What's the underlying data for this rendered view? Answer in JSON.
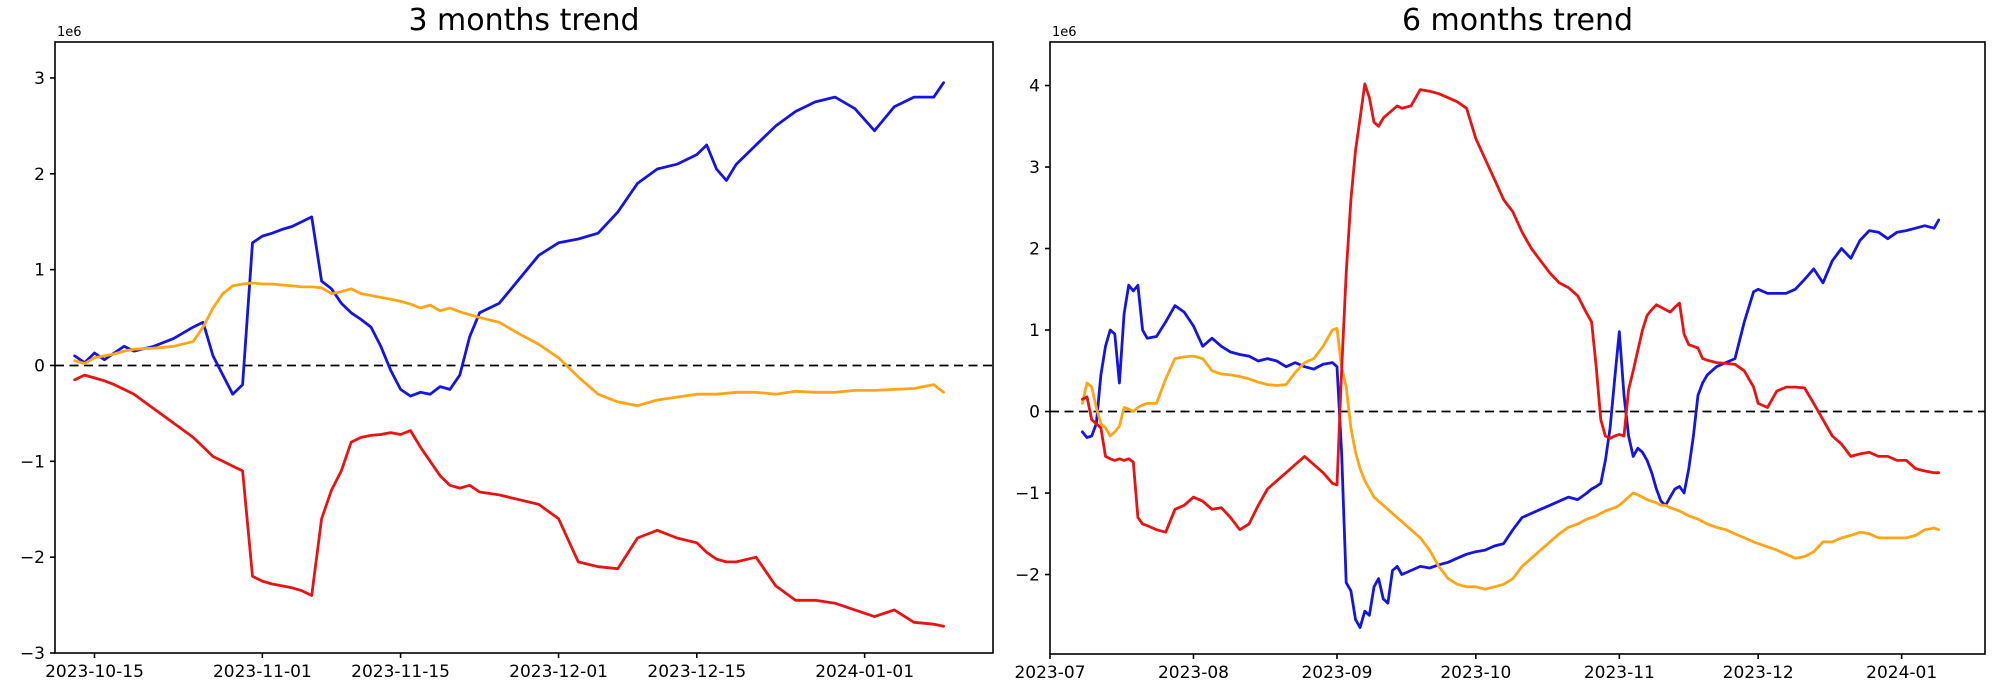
{
  "figure": {
    "background_color": "#ffffff",
    "axis_color": "#000000",
    "zero_line_style": "dashed-black",
    "series_colors": {
      "blue": "#1515e0",
      "orange": "#ffa517",
      "red": "#e81414"
    }
  },
  "chart_data": [
    {
      "type": "line",
      "title": "3 months trend",
      "y_offset_label": "1e6",
      "y_unit_multiplier": 1000000,
      "grid": false,
      "legend": null,
      "zero_line": true,
      "x_domain": [
        "2023-10-11",
        "2024-01-14"
      ],
      "y_domain": [
        -3.0,
        3.375
      ],
      "x_ticks": [
        {
          "date": "2023-10-15",
          "label": "2023-10-15"
        },
        {
          "date": "2023-11-01",
          "label": "2023-11-01"
        },
        {
          "date": "2023-11-15",
          "label": "2023-11-15"
        },
        {
          "date": "2023-12-01",
          "label": "2023-12-01"
        },
        {
          "date": "2023-12-15",
          "label": "2023-12-15"
        },
        {
          "date": "2024-01-01",
          "label": "2024-01-01"
        }
      ],
      "y_ticks": [
        {
          "value": 3,
          "label": "3"
        },
        {
          "value": 2,
          "label": "2"
        },
        {
          "value": 1,
          "label": "1"
        },
        {
          "value": 0,
          "label": "0"
        },
        {
          "value": -1,
          "label": "−1"
        },
        {
          "value": -2,
          "label": "−2"
        },
        {
          "value": -3,
          "label": "−3"
        }
      ],
      "x": [
        "2023-10-13",
        "2023-10-14",
        "2023-10-15",
        "2023-10-16",
        "2023-10-17",
        "2023-10-18",
        "2023-10-19",
        "2023-10-21",
        "2023-10-23",
        "2023-10-25",
        "2023-10-26",
        "2023-10-27",
        "2023-10-28",
        "2023-10-29",
        "2023-10-30",
        "2023-10-31",
        "2023-11-01",
        "2023-11-02",
        "2023-11-03",
        "2023-11-04",
        "2023-11-05",
        "2023-11-06",
        "2023-11-07",
        "2023-11-08",
        "2023-11-09",
        "2023-11-10",
        "2023-11-11",
        "2023-11-12",
        "2023-11-13",
        "2023-11-14",
        "2023-11-15",
        "2023-11-16",
        "2023-11-17",
        "2023-11-18",
        "2023-11-19",
        "2023-11-20",
        "2023-11-21",
        "2023-11-22",
        "2023-11-23",
        "2023-11-25",
        "2023-11-27",
        "2023-11-29",
        "2023-12-01",
        "2023-12-03",
        "2023-12-05",
        "2023-12-07",
        "2023-12-09",
        "2023-12-11",
        "2023-12-13",
        "2023-12-15",
        "2023-12-16",
        "2023-12-17",
        "2023-12-18",
        "2023-12-19",
        "2023-12-21",
        "2023-12-23",
        "2023-12-25",
        "2023-12-27",
        "2023-12-29",
        "2023-12-31",
        "2024-01-02",
        "2024-01-04",
        "2024-01-06",
        "2024-01-08",
        "2024-01-09"
      ],
      "series": [
        {
          "name": "blue",
          "color": "#1515e0",
          "values": [
            0.1,
            0.03,
            0.13,
            0.06,
            0.13,
            0.2,
            0.15,
            0.2,
            0.28,
            0.4,
            0.45,
            0.1,
            -0.1,
            -0.3,
            -0.2,
            1.28,
            1.35,
            1.38,
            1.42,
            1.45,
            1.5,
            1.55,
            0.88,
            0.8,
            0.65,
            0.55,
            0.48,
            0.4,
            0.2,
            -0.05,
            -0.25,
            -0.32,
            -0.28,
            -0.3,
            -0.22,
            -0.25,
            -0.1,
            0.3,
            0.55,
            0.65,
            0.9,
            1.15,
            1.28,
            1.32,
            1.38,
            1.6,
            1.9,
            2.05,
            2.1,
            2.2,
            2.3,
            2.05,
            1.93,
            2.1,
            2.3,
            2.5,
            2.65,
            2.75,
            2.8,
            2.68,
            2.45,
            2.7,
            2.8,
            2.8,
            2.95
          ]
        },
        {
          "name": "orange",
          "color": "#ffa517",
          "values": [
            0.05,
            0.02,
            0.08,
            0.1,
            0.12,
            0.15,
            0.17,
            0.18,
            0.2,
            0.25,
            0.4,
            0.6,
            0.75,
            0.83,
            0.85,
            0.86,
            0.85,
            0.85,
            0.84,
            0.83,
            0.82,
            0.82,
            0.81,
            0.75,
            0.77,
            0.8,
            0.75,
            0.73,
            0.71,
            0.69,
            0.67,
            0.64,
            0.6,
            0.63,
            0.57,
            0.6,
            0.56,
            0.53,
            0.5,
            0.45,
            0.33,
            0.22,
            0.08,
            -0.12,
            -0.3,
            -0.38,
            -0.42,
            -0.36,
            -0.33,
            -0.3,
            -0.3,
            -0.3,
            -0.29,
            -0.28,
            -0.28,
            -0.3,
            -0.27,
            -0.28,
            -0.28,
            -0.26,
            -0.26,
            -0.25,
            -0.24,
            -0.2,
            -0.28
          ]
        },
        {
          "name": "red",
          "color": "#e81414",
          "values": [
            -0.15,
            -0.1,
            -0.13,
            -0.16,
            -0.2,
            -0.25,
            -0.3,
            -0.45,
            -0.6,
            -0.75,
            -0.85,
            -0.95,
            -1.0,
            -1.05,
            -1.1,
            -2.2,
            -2.25,
            -2.28,
            -2.3,
            -2.32,
            -2.35,
            -2.4,
            -1.6,
            -1.3,
            -1.1,
            -0.8,
            -0.75,
            -0.73,
            -0.72,
            -0.7,
            -0.72,
            -0.68,
            -0.85,
            -1.0,
            -1.15,
            -1.25,
            -1.28,
            -1.25,
            -1.32,
            -1.35,
            -1.4,
            -1.45,
            -1.6,
            -2.05,
            -2.1,
            -2.12,
            -1.8,
            -1.72,
            -1.8,
            -1.85,
            -1.95,
            -2.02,
            -2.05,
            -2.05,
            -2.0,
            -2.3,
            -2.45,
            -2.45,
            -2.48,
            -2.55,
            -2.62,
            -2.55,
            -2.68,
            -2.7,
            -2.72
          ]
        }
      ]
    },
    {
      "type": "line",
      "title": "6 months trend",
      "y_offset_label": "1e6",
      "y_unit_multiplier": 1000000,
      "grid": false,
      "legend": null,
      "zero_line": true,
      "x_domain": [
        "2023-07-01",
        "2024-01-19"
      ],
      "y_domain": [
        -2.975,
        4.534
      ],
      "x_ticks": [
        {
          "date": "2023-07-01",
          "label": "2023-07"
        },
        {
          "date": "2023-08-01",
          "label": "2023-08"
        },
        {
          "date": "2023-09-01",
          "label": "2023-09"
        },
        {
          "date": "2023-10-01",
          "label": "2023-10"
        },
        {
          "date": "2023-11-01",
          "label": "2023-11"
        },
        {
          "date": "2023-12-01",
          "label": "2023-12"
        },
        {
          "date": "2024-01-01",
          "label": "2024-01"
        }
      ],
      "y_ticks": [
        {
          "value": 4,
          "label": "4"
        },
        {
          "value": 3,
          "label": "3"
        },
        {
          "value": 2,
          "label": "2"
        },
        {
          "value": 1,
          "label": "1"
        },
        {
          "value": 0,
          "label": "0"
        },
        {
          "value": -1,
          "label": "−1"
        },
        {
          "value": -2,
          "label": "−2"
        }
      ],
      "x": [
        "2023-07-08",
        "2023-07-09",
        "2023-07-10",
        "2023-07-11",
        "2023-07-12",
        "2023-07-13",
        "2023-07-14",
        "2023-07-15",
        "2023-07-16",
        "2023-07-17",
        "2023-07-18",
        "2023-07-19",
        "2023-07-20",
        "2023-07-21",
        "2023-07-22",
        "2023-07-24",
        "2023-07-26",
        "2023-07-28",
        "2023-07-30",
        "2023-08-01",
        "2023-08-03",
        "2023-08-05",
        "2023-08-07",
        "2023-08-09",
        "2023-08-11",
        "2023-08-13",
        "2023-08-15",
        "2023-08-17",
        "2023-08-19",
        "2023-08-21",
        "2023-08-23",
        "2023-08-25",
        "2023-08-27",
        "2023-08-29",
        "2023-08-31",
        "2023-09-01",
        "2023-09-02",
        "2023-09-03",
        "2023-09-04",
        "2023-09-05",
        "2023-09-06",
        "2023-09-07",
        "2023-09-08",
        "2023-09-09",
        "2023-09-10",
        "2023-09-11",
        "2023-09-12",
        "2023-09-13",
        "2023-09-14",
        "2023-09-15",
        "2023-09-17",
        "2023-09-19",
        "2023-09-21",
        "2023-09-23",
        "2023-09-25",
        "2023-09-27",
        "2023-09-29",
        "2023-10-01",
        "2023-10-03",
        "2023-10-05",
        "2023-10-07",
        "2023-10-09",
        "2023-10-11",
        "2023-10-13",
        "2023-10-15",
        "2023-10-17",
        "2023-10-19",
        "2023-10-21",
        "2023-10-23",
        "2023-10-25",
        "2023-10-26",
        "2023-10-27",
        "2023-10-28",
        "2023-10-29",
        "2023-10-30",
        "2023-10-31",
        "2023-11-01",
        "2023-11-02",
        "2023-11-03",
        "2023-11-04",
        "2023-11-05",
        "2023-11-06",
        "2023-11-07",
        "2023-11-08",
        "2023-11-09",
        "2023-11-10",
        "2023-11-11",
        "2023-11-12",
        "2023-11-13",
        "2023-11-14",
        "2023-11-15",
        "2023-11-16",
        "2023-11-17",
        "2023-11-18",
        "2023-11-19",
        "2023-11-20",
        "2023-11-22",
        "2023-11-24",
        "2023-11-26",
        "2023-11-28",
        "2023-11-30",
        "2023-12-01",
        "2023-12-03",
        "2023-12-05",
        "2023-12-07",
        "2023-12-09",
        "2023-12-11",
        "2023-12-13",
        "2023-12-15",
        "2023-12-17",
        "2023-12-19",
        "2023-12-21",
        "2023-12-23",
        "2023-12-25",
        "2023-12-27",
        "2023-12-29",
        "2023-12-31",
        "2024-01-02",
        "2024-01-04",
        "2024-01-06",
        "2024-01-08",
        "2024-01-09"
      ],
      "series": [
        {
          "name": "blue",
          "color": "#1515e0",
          "values": [
            -0.25,
            -0.32,
            -0.3,
            -0.15,
            0.45,
            0.8,
            1.0,
            0.95,
            0.35,
            1.2,
            1.55,
            1.48,
            1.55,
            1.0,
            0.9,
            0.92,
            1.1,
            1.3,
            1.22,
            1.05,
            0.8,
            0.9,
            0.8,
            0.73,
            0.7,
            0.68,
            0.62,
            0.65,
            0.62,
            0.55,
            0.6,
            0.55,
            0.52,
            0.58,
            0.6,
            0.55,
            -0.5,
            -2.1,
            -2.2,
            -2.55,
            -2.65,
            -2.45,
            -2.5,
            -2.15,
            -2.05,
            -2.3,
            -2.35,
            -1.95,
            -1.9,
            -2.0,
            -1.95,
            -1.9,
            -1.92,
            -1.88,
            -1.85,
            -1.8,
            -1.75,
            -1.72,
            -1.7,
            -1.65,
            -1.62,
            -1.45,
            -1.3,
            -1.25,
            -1.2,
            -1.15,
            -1.1,
            -1.05,
            -1.08,
            -1.0,
            -0.95,
            -0.92,
            -0.88,
            -0.6,
            -0.2,
            0.4,
            0.98,
            0.2,
            -0.3,
            -0.55,
            -0.45,
            -0.5,
            -0.6,
            -0.75,
            -0.95,
            -1.1,
            -1.15,
            -1.05,
            -0.95,
            -0.92,
            -1.0,
            -0.7,
            -0.3,
            0.2,
            0.35,
            0.45,
            0.55,
            0.6,
            0.65,
            1.1,
            1.47,
            1.5,
            1.45,
            1.45,
            1.45,
            1.5,
            1.62,
            1.75,
            1.58,
            1.85,
            2.0,
            1.88,
            2.1,
            2.22,
            2.2,
            2.12,
            2.2,
            2.22,
            2.25,
            2.28,
            2.25,
            2.35
          ]
        },
        {
          "name": "orange",
          "color": "#ffa517",
          "values": [
            0.1,
            0.35,
            0.3,
            0.05,
            -0.15,
            -0.2,
            -0.3,
            -0.25,
            -0.18,
            0.05,
            0.03,
            0.0,
            0.05,
            0.08,
            0.1,
            0.1,
            0.4,
            0.65,
            0.67,
            0.68,
            0.65,
            0.5,
            0.46,
            0.45,
            0.43,
            0.4,
            0.36,
            0.33,
            0.32,
            0.33,
            0.48,
            0.6,
            0.65,
            0.8,
            1.0,
            1.02,
            0.55,
            0.3,
            -0.2,
            -0.5,
            -0.7,
            -0.85,
            -0.95,
            -1.05,
            -1.1,
            -1.15,
            -1.2,
            -1.25,
            -1.3,
            -1.35,
            -1.45,
            -1.55,
            -1.7,
            -1.9,
            -2.05,
            -2.12,
            -2.15,
            -2.15,
            -2.18,
            -2.15,
            -2.12,
            -2.05,
            -1.9,
            -1.8,
            -1.7,
            -1.6,
            -1.5,
            -1.42,
            -1.38,
            -1.32,
            -1.3,
            -1.28,
            -1.25,
            -1.22,
            -1.2,
            -1.18,
            -1.15,
            -1.1,
            -1.05,
            -1.0,
            -1.02,
            -1.05,
            -1.08,
            -1.1,
            -1.12,
            -1.15,
            -1.15,
            -1.18,
            -1.2,
            -1.22,
            -1.25,
            -1.28,
            -1.3,
            -1.32,
            -1.35,
            -1.38,
            -1.42,
            -1.45,
            -1.5,
            -1.55,
            -1.6,
            -1.62,
            -1.66,
            -1.7,
            -1.75,
            -1.8,
            -1.78,
            -1.72,
            -1.6,
            -1.6,
            -1.55,
            -1.52,
            -1.48,
            -1.5,
            -1.55,
            -1.55,
            -1.55,
            -1.55,
            -1.52,
            -1.45,
            -1.43,
            -1.45
          ]
        },
        {
          "name": "red",
          "color": "#e81414",
          "values": [
            0.15,
            0.18,
            -0.1,
            -0.15,
            -0.2,
            -0.55,
            -0.58,
            -0.6,
            -0.58,
            -0.6,
            -0.58,
            -0.62,
            -1.3,
            -1.38,
            -1.4,
            -1.45,
            -1.48,
            -1.2,
            -1.15,
            -1.05,
            -1.1,
            -1.2,
            -1.18,
            -1.3,
            -1.45,
            -1.38,
            -1.15,
            -0.95,
            -0.85,
            -0.75,
            -0.65,
            -0.55,
            -0.65,
            -0.75,
            -0.88,
            -0.9,
            0.5,
            1.7,
            2.6,
            3.2,
            3.6,
            4.02,
            3.85,
            3.55,
            3.5,
            3.6,
            3.65,
            3.7,
            3.75,
            3.72,
            3.75,
            3.95,
            3.93,
            3.9,
            3.85,
            3.8,
            3.72,
            3.35,
            3.1,
            2.85,
            2.6,
            2.45,
            2.2,
            2.0,
            1.85,
            1.7,
            1.58,
            1.52,
            1.42,
            1.2,
            1.1,
            0.55,
            -0.1,
            -0.3,
            -0.33,
            -0.3,
            -0.28,
            -0.3,
            0.27,
            0.5,
            0.75,
            1.0,
            1.18,
            1.25,
            1.31,
            1.28,
            1.25,
            1.22,
            1.28,
            1.33,
            0.95,
            0.82,
            0.8,
            0.78,
            0.65,
            0.63,
            0.6,
            0.59,
            0.58,
            0.5,
            0.3,
            0.1,
            0.05,
            0.25,
            0.3,
            0.3,
            0.29,
            0.1,
            -0.1,
            -0.3,
            -0.4,
            -0.55,
            -0.52,
            -0.5,
            -0.55,
            -0.55,
            -0.6,
            -0.6,
            -0.7,
            -0.73,
            -0.75,
            -0.75
          ]
        }
      ]
    }
  ]
}
